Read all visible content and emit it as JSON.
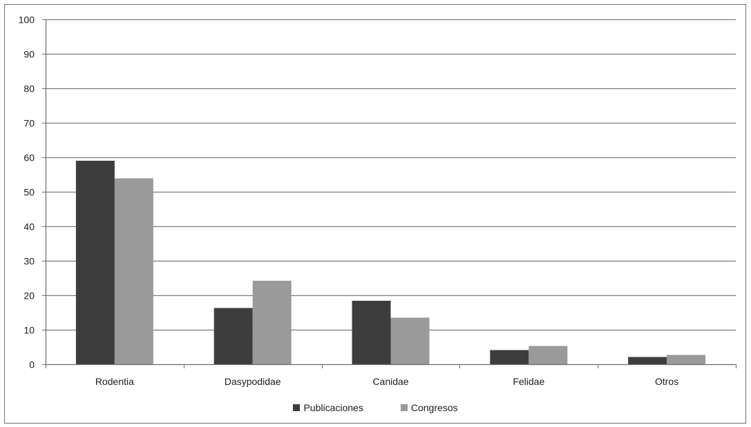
{
  "chart_data": {
    "type": "bar",
    "title": "",
    "xlabel": "",
    "ylabel": "",
    "categories": [
      "Rodentia",
      "Dasypodidae",
      "Canidae",
      "Felidae",
      "Otros"
    ],
    "series": [
      {
        "name": "Publicaciones",
        "values": [
          59,
          16.3,
          18.4,
          4.1,
          2.1
        ],
        "color": "#3d3d3d"
      },
      {
        "name": "Congresos",
        "values": [
          53.9,
          24.2,
          13.5,
          5.3,
          2.7
        ],
        "color": "#9a9a9a"
      }
    ],
    "ylim": [
      0,
      100
    ],
    "yticks": [
      0,
      10,
      20,
      30,
      40,
      50,
      60,
      70,
      80,
      90,
      100
    ],
    "grid": true,
    "legend_position": "bottom"
  }
}
